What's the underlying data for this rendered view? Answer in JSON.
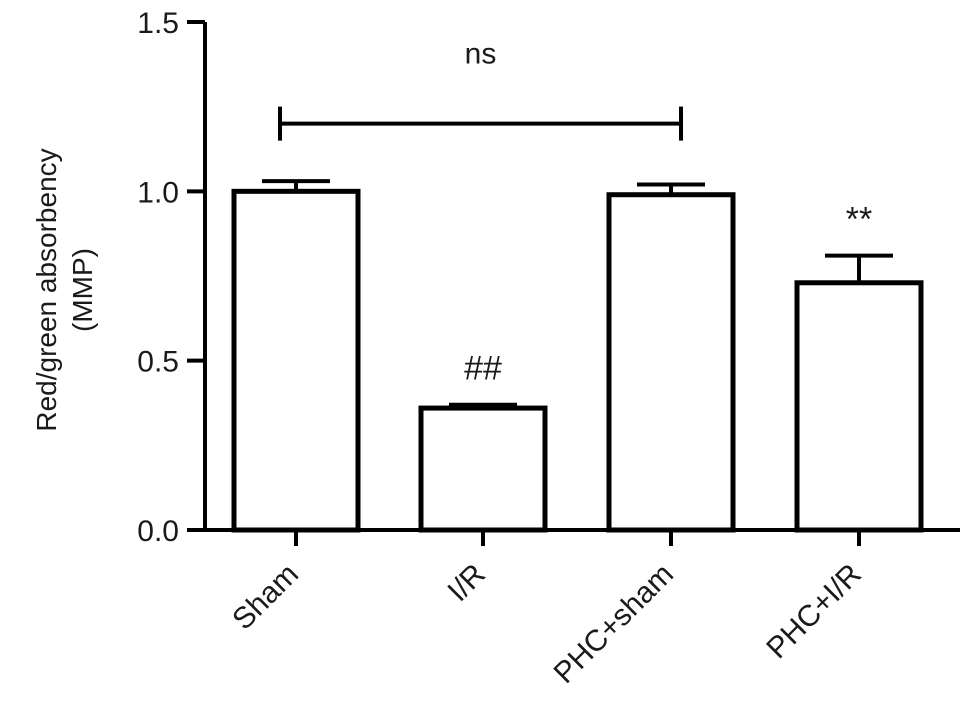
{
  "chart_data": {
    "type": "bar",
    "title": "",
    "ylabel_lines": [
      "Red/green absorbency",
      "(MMP)"
    ],
    "xlabel": "",
    "categories": [
      "Sham",
      "I/R",
      "PHC+sham",
      "PHC+I/R"
    ],
    "values": [
      1.0,
      0.36,
      0.99,
      0.73
    ],
    "errors": [
      0.03,
      0.01,
      0.03,
      0.08
    ],
    "ylim": [
      0,
      1.5
    ],
    "yticks": [
      0.0,
      0.5,
      1.0,
      1.5
    ],
    "ytick_labels": [
      "0.0",
      "0.5",
      "1.0",
      "1.5"
    ],
    "bar_annotations": [
      "",
      "##",
      "",
      "**"
    ],
    "comparison": {
      "from_index": 0,
      "to_index": 2,
      "label": "ns",
      "y": 1.2
    },
    "grid": false,
    "colors": {
      "bar_fill": "#ffffff",
      "stroke": "#000000"
    }
  }
}
